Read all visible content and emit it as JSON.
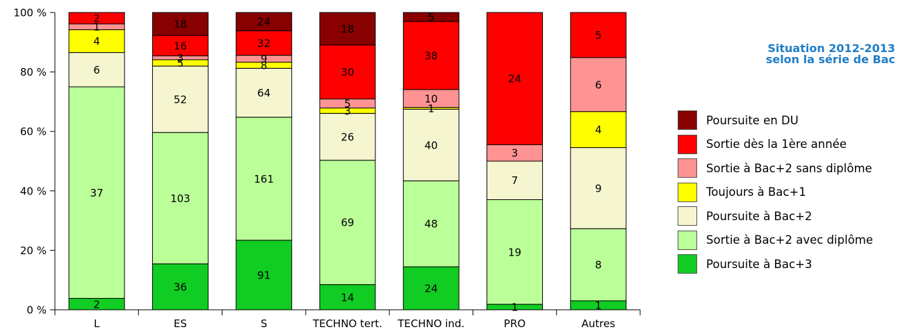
{
  "title": {
    "line1": "Situation 2012-2013",
    "line2": "selon la série de Bac"
  },
  "chart_data": {
    "type": "bar",
    "stacked": "percent",
    "categories": [
      "L",
      "ES",
      "S",
      "TECHNO tert.",
      "TECHNO ind.",
      "PRO",
      "Autres"
    ],
    "ylim": [
      0,
      100
    ],
    "y_ticks": [
      "0 %",
      "20 %",
      "40 %",
      "60 %",
      "80 %",
      "100 %"
    ],
    "grid": false,
    "legend_position": "right",
    "series": [
      {
        "name": "Poursuite à Bac+3",
        "color": "#11cc22",
        "values": [
          2,
          36,
          91,
          14,
          24,
          1,
          1
        ]
      },
      {
        "name": "Sortie à Bac+2 avec diplôme",
        "color": "#bbff99",
        "values": [
          37,
          103,
          161,
          69,
          48,
          19,
          8
        ]
      },
      {
        "name": "Poursuite à Bac+2",
        "color": "#f5f5d0",
        "values": [
          6,
          52,
          64,
          26,
          40,
          7,
          9
        ]
      },
      {
        "name": "Toujours à Bac+1",
        "color": "#ffff00",
        "values": [
          4,
          5,
          8,
          3,
          1,
          0,
          4
        ]
      },
      {
        "name": "Sortie à Bac+2 sans diplôme",
        "color": "#ff9393",
        "values": [
          1,
          3,
          9,
          5,
          10,
          3,
          6
        ]
      },
      {
        "name": "Sortie dès la 1ère année",
        "color": "#ff0000",
        "values": [
          2,
          16,
          32,
          30,
          38,
          24,
          5
        ]
      },
      {
        "name": "Poursuite en DU",
        "color": "#880000",
        "values": [
          0,
          18,
          24,
          18,
          5,
          0,
          0
        ]
      }
    ],
    "legend_order": [
      "Poursuite en DU",
      "Sortie dès la 1ère année",
      "Sortie à Bac+2 sans diplôme",
      "Toujours à Bac+1",
      "Poursuite à Bac+2",
      "Sortie à Bac+2 avec diplôme",
      "Poursuite à Bac+3"
    ]
  }
}
